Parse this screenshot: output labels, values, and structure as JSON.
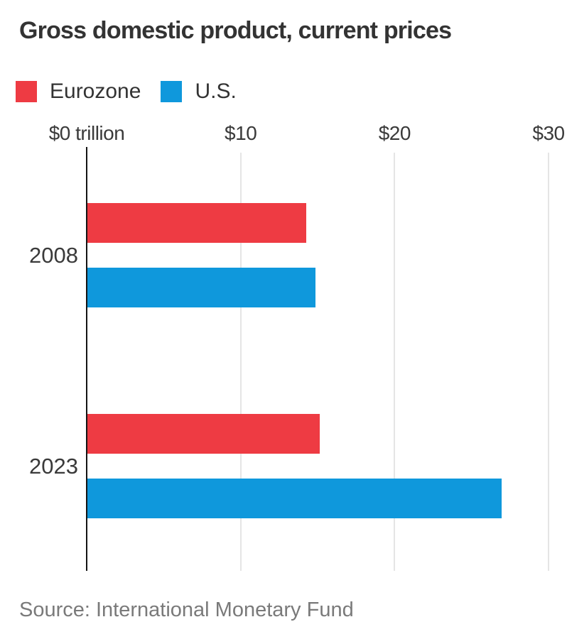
{
  "title": "Gross domestic product, current prices",
  "source": "Source: International Monetary Fund",
  "colors": {
    "eurozone_red": "#ee3b43",
    "us_blue": "#0f98dc",
    "axis": "#141414",
    "gridline": "#e5e5e5",
    "title_text": "#333333",
    "source_text": "#7a7a7a"
  },
  "legend": {
    "items": [
      {
        "label": "Eurozone",
        "color": "#ee3b43"
      },
      {
        "label": "U.S.",
        "color": "#0f98dc"
      }
    ]
  },
  "chart_data": {
    "type": "bar",
    "orientation": "horizontal",
    "title": "Gross domestic product, current prices",
    "categories": [
      "2008",
      "2023"
    ],
    "series": [
      {
        "name": "Eurozone",
        "color": "#ee3b43",
        "values": [
          14.2,
          15.1
        ]
      },
      {
        "name": "U.S.",
        "color": "#0f98dc",
        "values": [
          14.8,
          26.9
        ]
      }
    ],
    "x_axis": {
      "unit": "trillion USD",
      "xlim": [
        0,
        30
      ],
      "grid": true,
      "ticks": [
        {
          "value": 0,
          "label": "$0 trillion"
        },
        {
          "value": 10,
          "label": "$10"
        },
        {
          "value": 20,
          "label": "$20"
        },
        {
          "value": 30,
          "label": "$30"
        }
      ]
    },
    "legend_position": "top-left"
  }
}
